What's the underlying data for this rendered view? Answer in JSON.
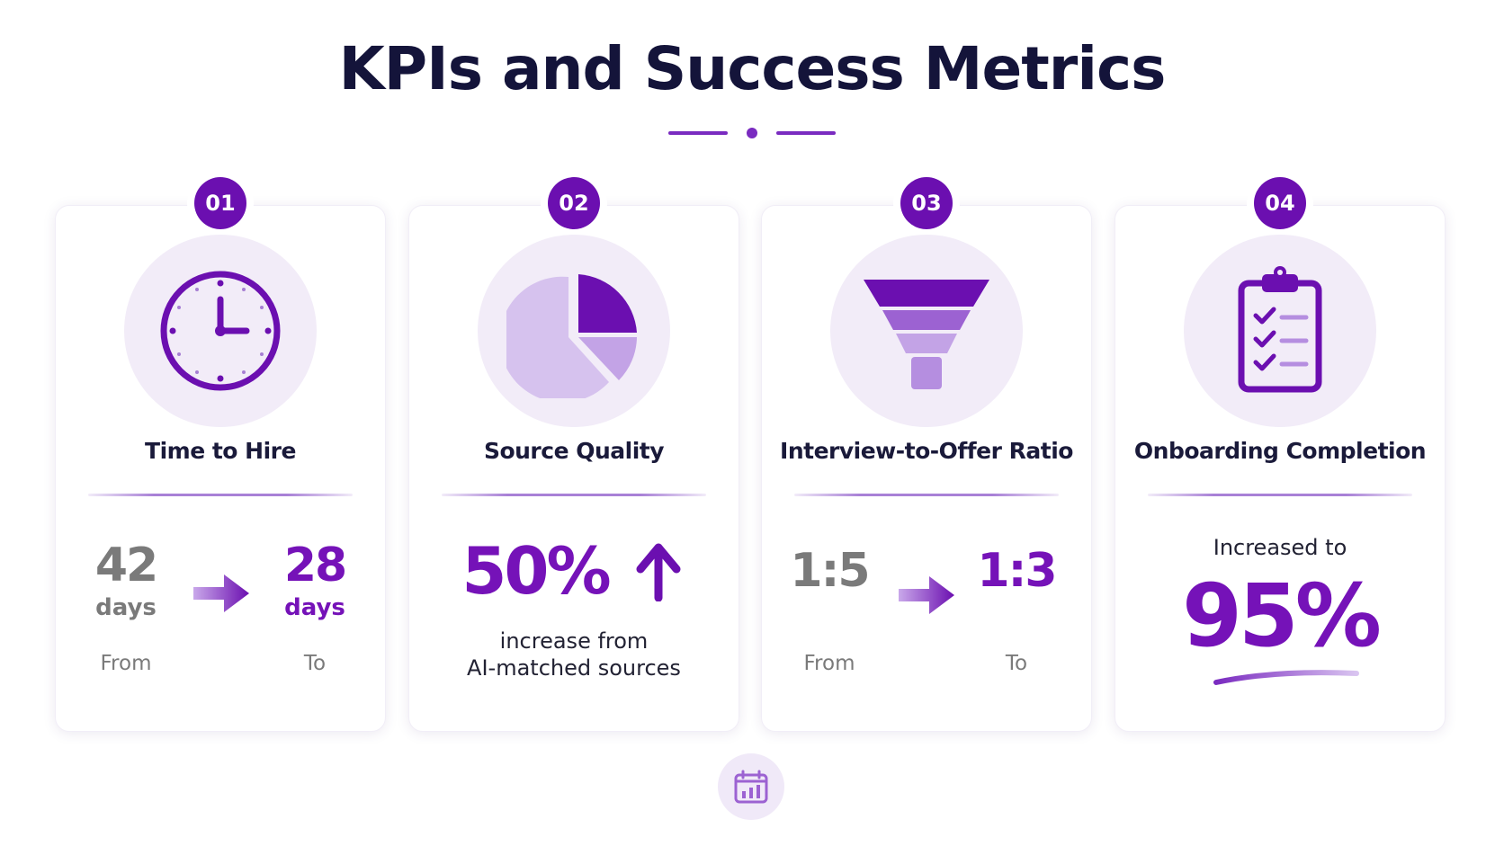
{
  "title": "KPIs and Success Metrics",
  "colors": {
    "primary": "#6b0fb0",
    "accent": "#7512b8",
    "light": "#f2ecf8",
    "text": "#14143a",
    "muted": "#7a7a7a"
  },
  "cards": [
    {
      "number": "01",
      "icon": "clock-icon",
      "title": "Time to Hire",
      "from_value": "42",
      "from_unit": "days",
      "to_value": "28",
      "to_unit": "days",
      "from_label": "From",
      "to_label": "To"
    },
    {
      "number": "02",
      "icon": "pie-chart-icon",
      "title": "Source Quality",
      "value": "50%",
      "description_line1": "increase from",
      "description_line2": "AI-matched sources"
    },
    {
      "number": "03",
      "icon": "funnel-icon",
      "title": "Interview-to-Offer Ratio",
      "from_value": "1:5",
      "to_value": "1:3",
      "from_label": "From",
      "to_label": "To"
    },
    {
      "number": "04",
      "icon": "clipboard-checklist-icon",
      "title": "Onboarding Completion",
      "caption": "Increased to",
      "value": "95%"
    }
  ],
  "footer_icon": "calendar-chart-icon"
}
